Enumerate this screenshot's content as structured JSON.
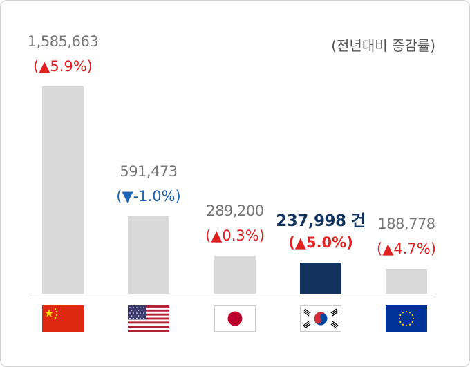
{
  "chart_data": {
    "type": "bar",
    "note": "(전년대비 증감률)",
    "unit": "건",
    "ylim": [
      0,
      1585663
    ],
    "categories": [
      "China",
      "USA",
      "Japan",
      "Korea",
      "EU"
    ],
    "values": [
      1585663,
      591473,
      289200,
      237998,
      188778
    ],
    "value_labels": [
      "1,585,663",
      "591,473",
      "289,200",
      "237,998",
      "188,778"
    ],
    "change_labels": [
      "(▲5.9%)",
      "(▼-1.0%)",
      "(▲0.3%)",
      "(▲5.0%)",
      "(▲4.7%)"
    ],
    "change_values": [
      5.9,
      -1.0,
      0.3,
      5.0,
      4.7
    ],
    "highlight_index": 3,
    "flag_icons": [
      "china-flag-icon",
      "usa-flag-icon",
      "japan-flag-icon",
      "korea-flag-icon",
      "eu-flag-icon"
    ],
    "colors": {
      "bar": "#d9d9d9",
      "highlight": "#13335f",
      "up": "#e02020",
      "down": "#1e64b4"
    }
  }
}
